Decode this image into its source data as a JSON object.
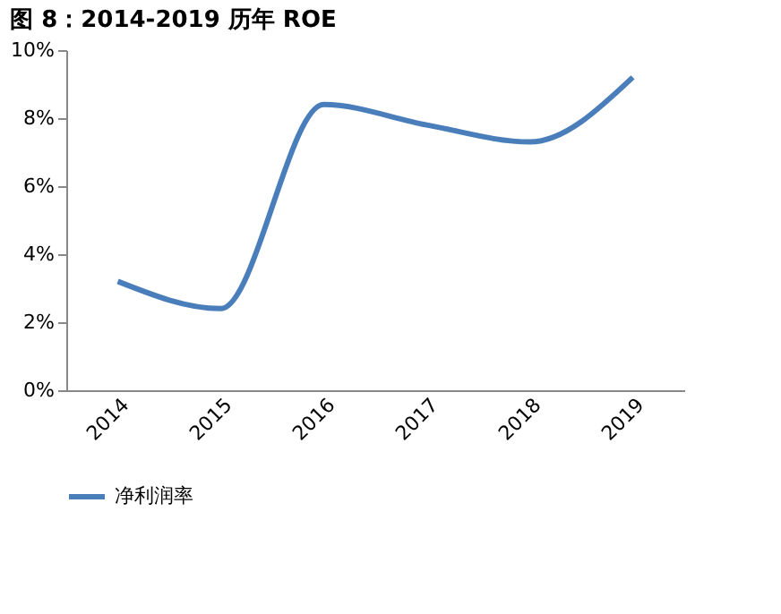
{
  "chart_data": {
    "type": "line",
    "title": "图 8：2014-2019 历年 ROE",
    "categories": [
      "2014",
      "2015",
      "2016",
      "2017",
      "2018",
      "2019"
    ],
    "series": [
      {
        "name": "净利润率",
        "color": "#4a7ebb",
        "values": [
          3.2,
          2.4,
          8.4,
          7.8,
          7.3,
          9.2
        ]
      }
    ],
    "ylim": [
      0,
      10
    ],
    "yticks": [
      {
        "value": 0,
        "label": "0%"
      },
      {
        "value": 2,
        "label": "2%"
      },
      {
        "value": 4,
        "label": "4%"
      },
      {
        "value": 6,
        "label": "6%"
      },
      {
        "value": 8,
        "label": "8%"
      },
      {
        "value": 10,
        "label": "10%"
      }
    ],
    "grid": false,
    "legend": "bottom",
    "marker": "none",
    "line_style": "solid"
  }
}
